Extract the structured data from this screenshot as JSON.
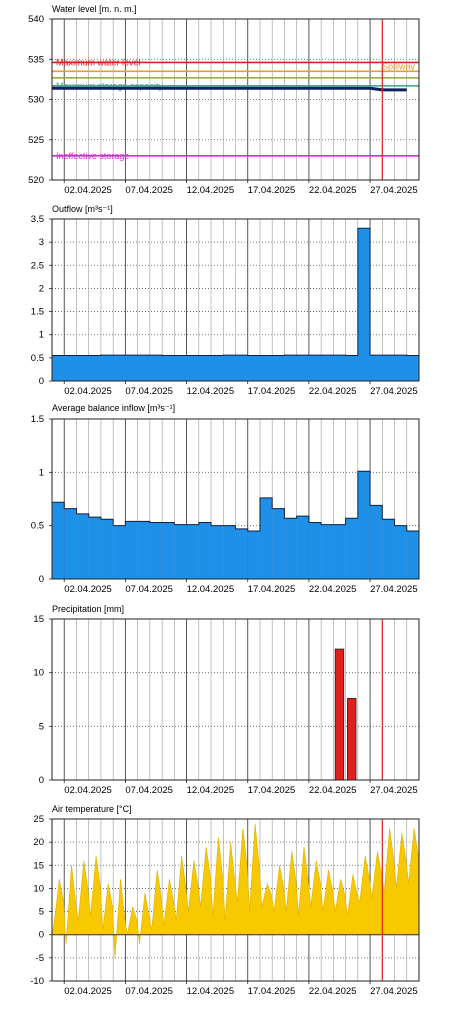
{
  "chart_data": [
    {
      "type": "line",
      "title": "Water level [m. n. m.]",
      "ylim": [
        520,
        540
      ],
      "yticks": [
        520,
        525,
        530,
        535,
        540
      ],
      "x_range": [
        "2025-04-01",
        "2025-04-30"
      ],
      "xticks": [
        "02.04.2025",
        "07.04.2025",
        "12.04.2025",
        "17.04.2025",
        "22.04.2025",
        "27.04.2025"
      ],
      "current_day_marker": "2025-04-28",
      "grid": true,
      "reference_lines": [
        {
          "label": "Maximum water level",
          "value": 534.6,
          "color": "#e02020",
          "label_position": "left"
        },
        {
          "label": "Spillway",
          "value": 533.5,
          "color": "#e0a030",
          "label_position": "right"
        },
        {
          "label": "",
          "value": 532.7,
          "color": "#90b040",
          "label_position": "none"
        },
        {
          "label": "Maximum storage capacity",
          "value": 531.7,
          "color": "#4aa88a",
          "label_position": "left"
        },
        {
          "label": "Ineffective storage",
          "value": 523.0,
          "color": "#d030d0",
          "label_position": "left"
        }
      ],
      "series": [
        {
          "name": "",
          "color": "#102060",
          "x": [
            "2025-04-01",
            "2025-04-05",
            "2025-04-10",
            "2025-04-15",
            "2025-04-20",
            "2025-04-25",
            "2025-04-27",
            "2025-04-28",
            "2025-04-29",
            "2025-04-30"
          ],
          "values": [
            531.4,
            531.4,
            531.4,
            531.4,
            531.4,
            531.4,
            531.4,
            531.2,
            531.2,
            531.2
          ]
        }
      ]
    },
    {
      "type": "area",
      "title": "Outflow [m³s⁻¹]",
      "ylim": [
        0,
        3.5
      ],
      "yticks": [
        0,
        0.5,
        1,
        1.5,
        2,
        2.5,
        3,
        3.5
      ],
      "x_range": [
        "2025-04-01",
        "2025-04-30"
      ],
      "xticks": [
        "02.04.2025",
        "07.04.2025",
        "12.04.2025",
        "17.04.2025",
        "22.04.2025",
        "27.04.2025"
      ],
      "grid": true,
      "series": [
        {
          "name": "",
          "color": "#1e90e8",
          "x": [
            "2025-04-01",
            "2025-04-05",
            "2025-04-10",
            "2025-04-13",
            "2025-04-15",
            "2025-04-17",
            "2025-04-20",
            "2025-04-24",
            "2025-04-25",
            "2025-04-26",
            "2025-04-27",
            "2025-04-28",
            "2025-04-29",
            "2025-04-30"
          ],
          "values": [
            0.55,
            0.56,
            0.55,
            0.55,
            0.56,
            0.55,
            0.56,
            0.56,
            0.55,
            3.3,
            0.56,
            0.56,
            0.56,
            0.55
          ]
        }
      ]
    },
    {
      "type": "bar",
      "title": "Average balance inflow  [m³s⁻¹]",
      "ylim": [
        0,
        1.5
      ],
      "yticks": [
        0,
        0.5,
        1,
        1.5
      ],
      "x_range": [
        "2025-04-01",
        "2025-04-30"
      ],
      "xticks": [
        "02.04.2025",
        "07.04.2025",
        "12.04.2025",
        "17.04.2025",
        "22.04.2025",
        "27.04.2025"
      ],
      "grid": true,
      "series": [
        {
          "name": "",
          "color": "#1e90e8",
          "x": [
            "2025-04-01",
            "2025-04-02",
            "2025-04-03",
            "2025-04-04",
            "2025-04-05",
            "2025-04-06",
            "2025-04-07",
            "2025-04-08",
            "2025-04-09",
            "2025-04-10",
            "2025-04-11",
            "2025-04-12",
            "2025-04-13",
            "2025-04-14",
            "2025-04-15",
            "2025-04-16",
            "2025-04-17",
            "2025-04-18",
            "2025-04-19",
            "2025-04-20",
            "2025-04-21",
            "2025-04-22",
            "2025-04-23",
            "2025-04-24",
            "2025-04-25",
            "2025-04-26",
            "2025-04-27",
            "2025-04-28",
            "2025-04-29",
            "2025-04-30"
          ],
          "values": [
            0.72,
            0.66,
            0.61,
            0.58,
            0.56,
            0.5,
            0.54,
            0.54,
            0.53,
            0.53,
            0.51,
            0.51,
            0.53,
            0.5,
            0.5,
            0.47,
            0.45,
            0.76,
            0.66,
            0.57,
            0.59,
            0.53,
            0.51,
            0.51,
            0.57,
            1.01,
            0.69,
            0.56,
            0.5,
            0.45
          ]
        }
      ]
    },
    {
      "type": "bar",
      "title": "Precipitation [mm]",
      "ylim": [
        0,
        15
      ],
      "yticks": [
        0,
        5,
        10,
        15
      ],
      "x_range": [
        "2025-04-01",
        "2025-04-30"
      ],
      "xticks": [
        "02.04.2025",
        "07.04.2025",
        "12.04.2025",
        "17.04.2025",
        "22.04.2025",
        "27.04.2025"
      ],
      "current_day_marker": "2025-04-28",
      "grid": true,
      "series": [
        {
          "name": "",
          "color": "#e02020",
          "x": [
            "2025-04-24",
            "2025-04-25"
          ],
          "values": [
            12.2,
            7.6
          ]
        }
      ]
    },
    {
      "type": "area",
      "title": "Air temperature [°C]",
      "ylim": [
        -10,
        25
      ],
      "yticks": [
        -10,
        -5,
        0,
        5,
        10,
        15,
        20,
        25
      ],
      "x_range": [
        "2025-04-01",
        "2025-04-30"
      ],
      "xticks": [
        "02.04.2025",
        "07.04.2025",
        "12.04.2025",
        "17.04.2025",
        "22.04.2025",
        "27.04.2025"
      ],
      "current_day_marker": "2025-04-28",
      "grid": true,
      "daily_range": {
        "x": [
          "2025-04-01",
          "2025-04-02",
          "2025-04-03",
          "2025-04-04",
          "2025-04-05",
          "2025-04-06",
          "2025-04-07",
          "2025-04-08",
          "2025-04-09",
          "2025-04-10",
          "2025-04-11",
          "2025-04-12",
          "2025-04-13",
          "2025-04-14",
          "2025-04-15",
          "2025-04-16",
          "2025-04-17",
          "2025-04-18",
          "2025-04-19",
          "2025-04-20",
          "2025-04-21",
          "2025-04-22",
          "2025-04-23",
          "2025-04-24",
          "2025-04-25",
          "2025-04-26",
          "2025-04-27",
          "2025-04-28",
          "2025-04-29",
          "2025-04-30"
        ],
        "min": [
          2,
          -2,
          3,
          4,
          1,
          -5,
          0,
          -2,
          1,
          2,
          3,
          5,
          6,
          4,
          3,
          7,
          5,
          6,
          5,
          5,
          4,
          6,
          5,
          5,
          4,
          7,
          8,
          9,
          10,
          11
        ],
        "max": [
          12,
          15,
          16,
          17,
          11,
          12,
          6,
          9,
          14,
          12,
          17,
          16,
          19,
          21,
          20,
          23,
          24,
          11,
          15,
          18,
          19,
          16,
          14,
          12,
          13,
          17,
          18,
          23,
          22,
          23
        ]
      },
      "series": [
        {
          "name": "",
          "color": "#f8c800"
        }
      ]
    }
  ]
}
